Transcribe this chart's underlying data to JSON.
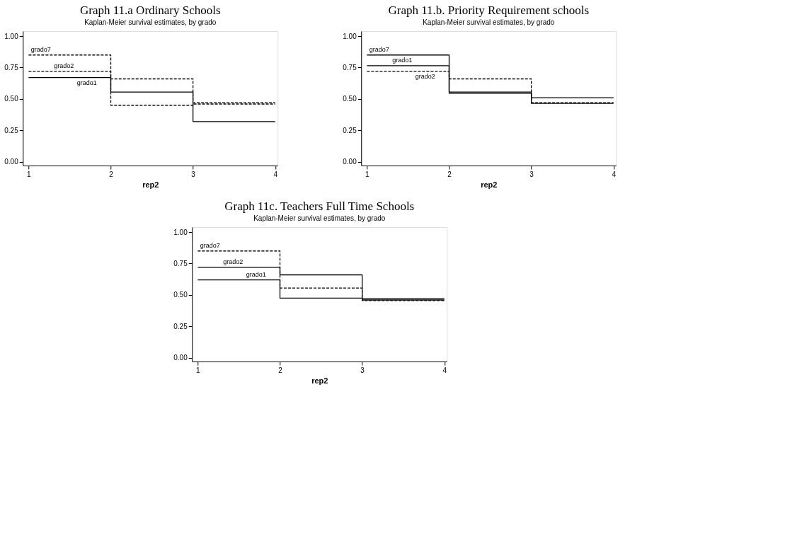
{
  "chart_data": [
    {
      "type": "step",
      "title": "Graph 11.a Ordinary Schools",
      "subtitle": "Kaplan-Meier survival estimates, by grado",
      "xlabel": "rep2",
      "x": [
        1,
        2,
        3,
        4
      ],
      "xlim": [
        0.93,
        4.03
      ],
      "xticks": [
        1,
        2,
        3,
        4
      ],
      "ylim": [
        -0.03,
        1.04
      ],
      "yticks": [
        {
          "value": 0,
          "label": "0.00"
        },
        {
          "value": 0.25,
          "label": "0.25"
        },
        {
          "value": 0.5,
          "label": "0.50"
        },
        {
          "value": 0.75,
          "label": "0.75"
        },
        {
          "value": 1,
          "label": "1.00"
        }
      ],
      "grid": false,
      "series": [
        {
          "name": "grado7",
          "color": "#000000",
          "line_style": "dashed",
          "values": [
            0.85,
            0.45,
            0.46,
            0.46
          ]
        },
        {
          "name": "grado2",
          "color": "#000000",
          "line_style": "dashed",
          "values": [
            0.72,
            0.66,
            0.47,
            0.47
          ]
        },
        {
          "name": "grado1",
          "color": "#000000",
          "line_style": "solid",
          "values": [
            0.67,
            0.555,
            0.32,
            0.32
          ]
        }
      ]
    },
    {
      "type": "step",
      "title": "Graph 11.b. Priority Requirement schools",
      "subtitle": "Kaplan-Meier survival estimates, by grado",
      "xlabel": "rep2",
      "x": [
        1,
        2,
        3,
        4
      ],
      "xlim": [
        0.93,
        4.03
      ],
      "xticks": [
        1,
        2,
        3,
        4
      ],
      "ylim": [
        -0.03,
        1.04
      ],
      "yticks": [
        {
          "value": 0,
          "label": "0.00"
        },
        {
          "value": 0.25,
          "label": "0.25"
        },
        {
          "value": 0.5,
          "label": "0.50"
        },
        {
          "value": 0.75,
          "label": "0.75"
        },
        {
          "value": 1,
          "label": "1.00"
        }
      ],
      "grid": false,
      "series": [
        {
          "name": "grado7",
          "color": "#000000",
          "line_style": "solid",
          "values": [
            0.85,
            0.545,
            0.51,
            0.51
          ]
        },
        {
          "name": "grado1",
          "color": "#000000",
          "line_style": "solid",
          "values": [
            0.765,
            0.555,
            0.465,
            0.465
          ]
        },
        {
          "name": "grado2",
          "color": "#000000",
          "line_style": "dashed",
          "values": [
            0.72,
            0.66,
            0.47,
            0.47
          ]
        }
      ]
    },
    {
      "type": "step",
      "title": "Graph 11c. Teachers Full Time Schools",
      "subtitle": "Kaplan-Meier survival estimates, by grado",
      "xlabel": "rep2",
      "x": [
        1,
        2,
        3,
        4
      ],
      "xlim": [
        0.93,
        4.03
      ],
      "xticks": [
        1,
        2,
        3,
        4
      ],
      "ylim": [
        -0.03,
        1.04
      ],
      "yticks": [
        {
          "value": 0,
          "label": "0.00"
        },
        {
          "value": 0.25,
          "label": "0.25"
        },
        {
          "value": 0.5,
          "label": "0.50"
        },
        {
          "value": 0.75,
          "label": "0.75"
        },
        {
          "value": 1,
          "label": "1.00"
        }
      ],
      "grid": false,
      "series": [
        {
          "name": "grado7",
          "color": "#000000",
          "line_style": "dashed",
          "values": [
            0.85,
            0.555,
            0.455,
            0.455
          ]
        },
        {
          "name": "grado2",
          "color": "#000000",
          "line_style": "solid",
          "values": [
            0.72,
            0.66,
            0.46,
            0.46
          ]
        },
        {
          "name": "grado1",
          "color": "#000000",
          "line_style": "solid",
          "values": [
            0.62,
            0.475,
            0.47,
            0.47
          ]
        }
      ]
    }
  ]
}
